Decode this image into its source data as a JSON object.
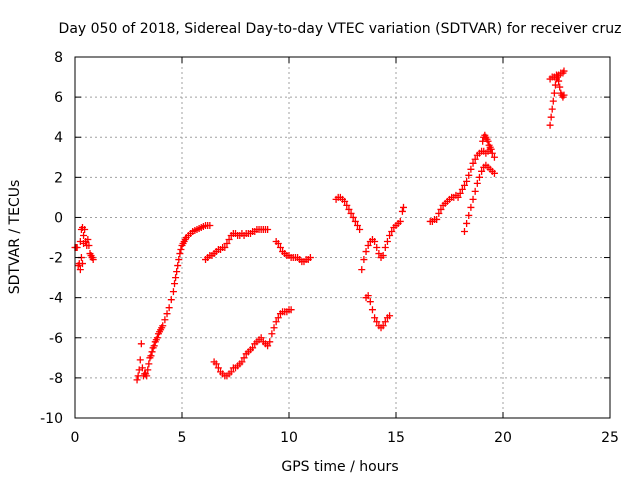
{
  "chart_data": {
    "type": "scatter",
    "title": "Day 050 of 2018, Sidereal Day-to-day VTEC variation (SDTVAR) for receiver cruz",
    "xlabel": "GPS time / hours",
    "ylabel": "SDTVAR / TECUs",
    "xlim": [
      0,
      25
    ],
    "ylim": [
      -10,
      8
    ],
    "xticks": [
      0,
      5,
      10,
      15,
      20,
      25
    ],
    "yticks": [
      -10,
      -8,
      -6,
      -4,
      -2,
      0,
      2,
      4,
      6,
      8
    ],
    "grid": true,
    "marker": "plus",
    "color": "#ff0000",
    "series": [
      {
        "x": [
          0.0,
          0.05,
          0.1,
          0.15,
          0.2,
          0.25,
          0.3,
          0.35,
          0.4,
          0.45,
          0.5,
          0.55,
          0.6,
          0.65,
          0.7,
          0.75,
          0.8,
          0.85
        ],
        "y": [
          -1.5,
          -1.5,
          -1.5,
          -2.4,
          -2.3,
          -1.2,
          -0.6,
          -0.5,
          -0.9,
          -0.6,
          -1.2,
          -1.4,
          -1.1,
          -1.4,
          -1.8,
          -1.9,
          -2.0,
          -2.1
        ]
      },
      {
        "x": [
          0.25,
          0.3,
          0.35,
          0.4
        ],
        "y": [
          -2.6,
          -2.0,
          -2.3,
          -1.3
        ]
      },
      {
        "x": [
          2.9,
          2.95,
          3.0,
          3.05,
          3.1,
          3.15,
          3.2,
          3.25,
          3.3,
          3.35,
          3.4,
          3.45,
          3.5,
          3.55,
          3.6,
          3.65,
          3.7,
          3.75,
          3.8,
          3.85,
          3.9,
          3.95,
          4.0,
          4.05,
          4.1,
          4.2,
          4.3,
          4.4,
          4.5,
          4.6,
          4.65,
          4.7,
          4.75,
          4.8,
          4.85,
          4.9,
          4.95,
          5.0,
          5.05,
          5.1,
          5.15,
          5.2,
          5.3,
          5.4,
          5.5,
          5.6,
          5.7,
          5.8,
          5.9,
          6.0,
          6.1,
          6.2,
          6.3
        ],
        "y": [
          -8.1,
          -7.9,
          -7.6,
          -7.1,
          -6.3,
          -7.5,
          -7.9,
          -7.8,
          -7.8,
          -7.9,
          -7.6,
          -7.3,
          -7.0,
          -6.9,
          -6.7,
          -6.5,
          -6.4,
          -6.2,
          -6.1,
          -6.0,
          -5.8,
          -5.7,
          -5.6,
          -5.5,
          -5.4,
          -5.1,
          -4.8,
          -4.5,
          -4.1,
          -3.7,
          -3.3,
          -3.0,
          -2.7,
          -2.4,
          -2.1,
          -1.8,
          -1.6,
          -1.4,
          -1.3,
          -1.2,
          -1.1,
          -1.0,
          -0.9,
          -0.8,
          -0.7,
          -0.65,
          -0.6,
          -0.55,
          -0.5,
          -0.45,
          -0.4,
          -0.4,
          -0.4
        ]
      },
      {
        "x": [
          6.1,
          6.2,
          6.3,
          6.4,
          6.5,
          6.6,
          6.7,
          6.8,
          6.9,
          7.0,
          7.1,
          7.2,
          7.3,
          7.4,
          7.5,
          7.6,
          7.7,
          7.8,
          7.9,
          8.0,
          8.1,
          8.2,
          8.3,
          8.4,
          8.5,
          8.6,
          8.7,
          8.8,
          8.9,
          9.0
        ],
        "y": [
          -2.1,
          -2.0,
          -1.9,
          -1.9,
          -1.8,
          -1.7,
          -1.6,
          -1.6,
          -1.5,
          -1.5,
          -1.3,
          -1.1,
          -0.9,
          -0.8,
          -0.8,
          -0.9,
          -0.9,
          -0.8,
          -0.9,
          -0.8,
          -0.8,
          -0.8,
          -0.7,
          -0.7,
          -0.6,
          -0.6,
          -0.6,
          -0.6,
          -0.6,
          -0.6
        ]
      },
      {
        "x": [
          9.4,
          9.5,
          9.6,
          9.7,
          9.8,
          9.9,
          10.0,
          10.1,
          10.2,
          10.3,
          10.4,
          10.5,
          10.6,
          10.7,
          10.8,
          10.9,
          11.0
        ],
        "y": [
          -1.2,
          -1.3,
          -1.5,
          -1.7,
          -1.8,
          -1.9,
          -1.9,
          -2.0,
          -2.0,
          -2.0,
          -2.0,
          -2.1,
          -2.2,
          -2.2,
          -2.1,
          -2.1,
          -2.0
        ]
      },
      {
        "x": [
          6.5,
          6.6,
          6.7,
          6.8,
          6.9,
          7.0,
          7.1,
          7.2,
          7.3,
          7.4,
          7.5,
          7.6,
          7.7,
          7.8,
          7.9,
          8.0,
          8.1,
          8.2,
          8.3,
          8.4,
          8.5,
          8.6,
          8.7,
          8.8,
          8.9,
          9.0,
          9.1,
          9.2,
          9.3,
          9.4,
          9.5,
          9.6,
          9.7,
          9.8,
          9.9,
          10.0,
          10.1
        ],
        "y": [
          -7.2,
          -7.3,
          -7.5,
          -7.7,
          -7.8,
          -7.9,
          -7.9,
          -7.8,
          -7.7,
          -7.5,
          -7.5,
          -7.4,
          -7.3,
          -7.2,
          -7.0,
          -6.8,
          -6.7,
          -6.6,
          -6.5,
          -6.3,
          -6.2,
          -6.1,
          -6.0,
          -6.2,
          -6.3,
          -6.4,
          -6.2,
          -5.8,
          -5.5,
          -5.2,
          -5.0,
          -4.8,
          -4.7,
          -4.7,
          -4.7,
          -4.6,
          -4.6
        ]
      },
      {
        "x": [
          12.2,
          12.3,
          12.4,
          12.5,
          12.6,
          12.7,
          12.8,
          12.9,
          13.0,
          13.1,
          13.2,
          13.3
        ],
        "y": [
          0.9,
          1.0,
          1.0,
          0.9,
          0.8,
          0.6,
          0.4,
          0.2,
          0.0,
          -0.2,
          -0.4,
          -0.6
        ]
      },
      {
        "x": [
          13.4,
          13.5,
          13.6,
          13.7,
          13.8,
          13.9,
          14.0,
          14.1,
          14.2,
          14.3,
          14.4,
          14.5,
          14.6,
          14.7,
          14.8,
          14.9,
          15.0,
          15.1,
          15.2
        ],
        "y": [
          -2.6,
          -2.1,
          -1.7,
          -1.4,
          -1.2,
          -1.1,
          -1.2,
          -1.5,
          -1.8,
          -2.0,
          -1.9,
          -1.5,
          -1.2,
          -0.9,
          -0.7,
          -0.5,
          -0.4,
          -0.3,
          -0.2
        ]
      },
      {
        "x": [
          15.3,
          15.35
        ],
        "y": [
          0.3,
          0.5
        ]
      },
      {
        "x": [
          13.6,
          13.7,
          13.8,
          13.9,
          14.0,
          14.1,
          14.2,
          14.3,
          14.4,
          14.5,
          14.6,
          14.7
        ],
        "y": [
          -4.0,
          -3.9,
          -4.2,
          -4.6,
          -5.0,
          -5.2,
          -5.4,
          -5.5,
          -5.4,
          -5.2,
          -5.0,
          -4.9
        ]
      },
      {
        "x": [
          16.6,
          16.7,
          16.8,
          16.9,
          17.0,
          17.1,
          17.2,
          17.3,
          17.4,
          17.5,
          17.6,
          17.7,
          17.8,
          17.9,
          18.0,
          18.1,
          18.2,
          18.3,
          18.4,
          18.5,
          18.6,
          18.7,
          18.8,
          18.9,
          19.0,
          19.1,
          19.2,
          19.3,
          19.4,
          19.5,
          19.6
        ],
        "y": [
          -0.2,
          -0.2,
          -0.1,
          -0.1,
          0.2,
          0.4,
          0.6,
          0.7,
          0.8,
          0.9,
          1.0,
          1.0,
          1.1,
          1.0,
          1.2,
          1.4,
          1.6,
          1.8,
          2.1,
          2.4,
          2.7,
          2.9,
          3.1,
          3.2,
          3.3,
          3.3,
          3.2,
          3.3,
          3.4,
          3.2,
          3.0
        ]
      },
      {
        "x": [
          18.2,
          18.3,
          18.4,
          18.5,
          18.6,
          18.7,
          18.8,
          18.9,
          19.0,
          19.1,
          19.2,
          19.3,
          19.4,
          19.5,
          19.6
        ],
        "y": [
          -0.7,
          -0.3,
          0.1,
          0.5,
          0.9,
          1.3,
          1.7,
          2.0,
          2.3,
          2.5,
          2.6,
          2.5,
          2.4,
          2.3,
          2.2
        ]
      },
      {
        "x": [
          19.05,
          19.1,
          19.15,
          19.2,
          19.25,
          19.3,
          19.35,
          19.4,
          19.45
        ],
        "y": [
          3.8,
          4.0,
          4.1,
          4.0,
          3.9,
          3.8,
          3.6,
          3.5,
          3.4
        ]
      },
      {
        "x": [
          22.2,
          22.25,
          22.3,
          22.35,
          22.4,
          22.45,
          22.5,
          22.55,
          22.6,
          22.65,
          22.7,
          22.75,
          22.8,
          22.85
        ],
        "y": [
          4.6,
          5.0,
          5.4,
          5.8,
          6.2,
          6.6,
          6.9,
          7.0,
          6.8,
          6.5,
          6.2,
          6.1,
          6.0,
          6.1
        ]
      },
      {
        "x": [
          22.2,
          22.3,
          22.4,
          22.5,
          22.6,
          22.7,
          22.8,
          22.85
        ],
        "y": [
          6.9,
          7.0,
          7.0,
          7.1,
          7.1,
          7.2,
          7.2,
          7.3
        ]
      }
    ]
  }
}
